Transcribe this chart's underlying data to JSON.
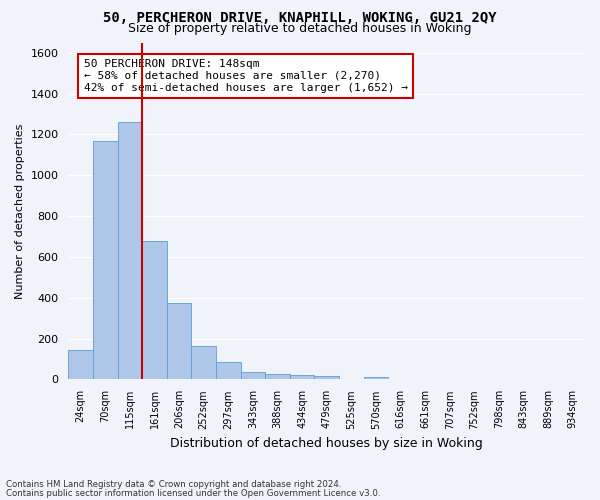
{
  "title_line1": "50, PERCHERON DRIVE, KNAPHILL, WOKING, GU21 2QY",
  "title_line2": "Size of property relative to detached houses in Woking",
  "xlabel": "Distribution of detached houses by size in Woking",
  "ylabel": "Number of detached properties",
  "bar_values": [
    145,
    1170,
    1260,
    680,
    375,
    165,
    85,
    38,
    28,
    20,
    18,
    0,
    12,
    0,
    0,
    0,
    0,
    0,
    0,
    0,
    0
  ],
  "categories": [
    "24sqm",
    "70sqm",
    "115sqm",
    "161sqm",
    "206sqm",
    "252sqm",
    "297sqm",
    "343sqm",
    "388sqm",
    "434sqm",
    "479sqm",
    "525sqm",
    "570sqm",
    "616sqm",
    "661sqm",
    "707sqm",
    "752sqm",
    "798sqm",
    "843sqm",
    "889sqm",
    "934sqm"
  ],
  "bar_color": "#aec6e8",
  "bar_edge_color": "#5a9fd4",
  "highlight_bar_index": 2,
  "vline_color": "#cc0000",
  "annotation_text": "50 PERCHERON DRIVE: 148sqm\n← 58% of detached houses are smaller (2,270)\n42% of semi-detached houses are larger (1,652) →",
  "annotation_box_color": "#ffffff",
  "annotation_box_edge": "#cc0000",
  "bg_color": "#f0f4fa",
  "grid_color": "#ffffff",
  "ylim_max": 1650,
  "yticks": [
    0,
    200,
    400,
    600,
    800,
    1000,
    1200,
    1400,
    1600
  ],
  "footer_line1": "Contains HM Land Registry data © Crown copyright and database right 2024.",
  "footer_line2": "Contains public sector information licensed under the Open Government Licence v3.0."
}
